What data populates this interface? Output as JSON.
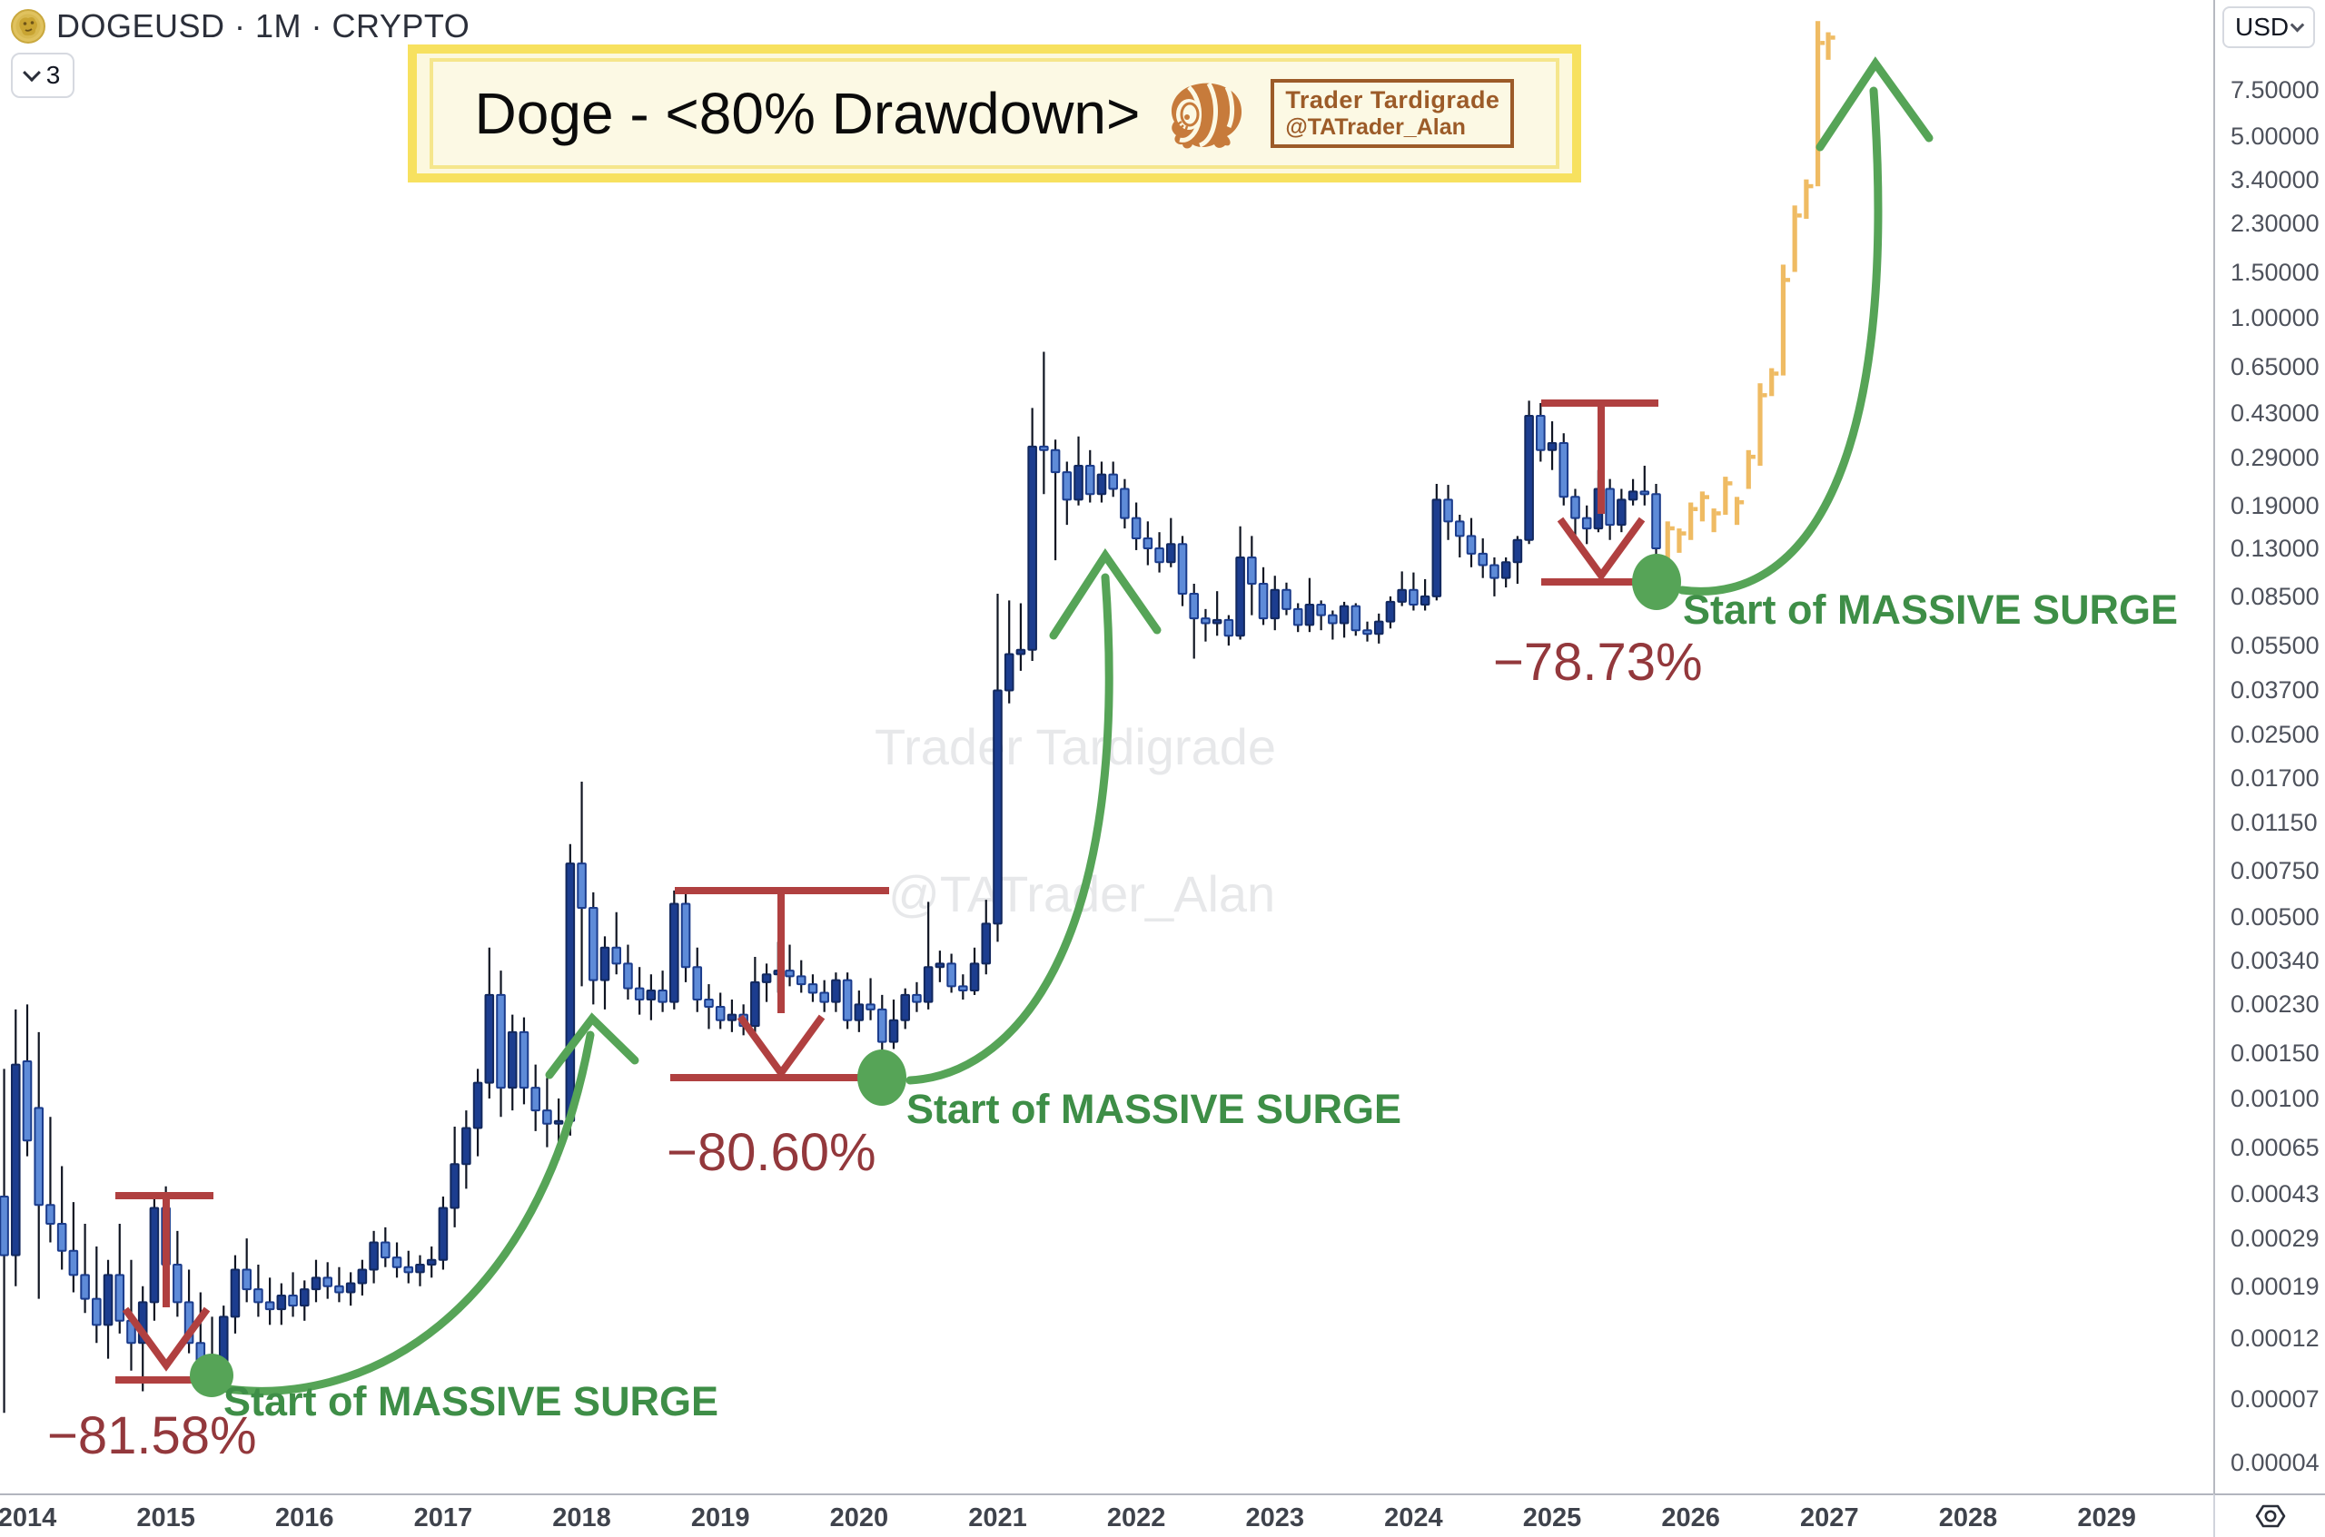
{
  "header": {
    "symbol": "DOGEUSD · 1M · CRYPTO",
    "layers_button": "3"
  },
  "banner": {
    "title": "Doge - <80% Drawdown>",
    "logo_name": "Trader Tardigrade",
    "logo_handle": "@TATrader_Alan"
  },
  "watermark": {
    "line1": "Trader Tardigrade",
    "line2": "@TATrader_Alan"
  },
  "price_axis": {
    "currency": "USD",
    "labels": [
      "7.50000",
      "5.00000",
      "3.40000",
      "2.30000",
      "1.50000",
      "1.00000",
      "0.65000",
      "0.43000",
      "0.29000",
      "0.19000",
      "0.13000",
      "0.08500",
      "0.05500",
      "0.03700",
      "0.02500",
      "0.01700",
      "0.01150",
      "0.00750",
      "0.00500",
      "0.00340",
      "0.00230",
      "0.00150",
      "0.00100",
      "0.00065",
      "0.00043",
      "0.00029",
      "0.00019",
      "0.00012",
      "0.00007",
      "0.00004"
    ]
  },
  "time_axis": {
    "years": [
      "2014",
      "2015",
      "2016",
      "2017",
      "2018",
      "2019",
      "2020",
      "2021",
      "2022",
      "2023",
      "2024",
      "2025",
      "2026",
      "2027",
      "2028",
      "2029"
    ]
  },
  "chart_data": {
    "type": "candlestick",
    "symbol": "DOGEUSD",
    "timeframe": "1M",
    "quote_currency": "USD",
    "title": "Doge - <80% Drawdown>",
    "y_scale": "log",
    "y_range": [
      4e-05,
      13.8
    ],
    "x_unit": "months_since_2014-01",
    "x_tick_years": [
      2014,
      2015,
      2016,
      2017,
      2018,
      2019,
      2020,
      2021,
      2022,
      2023,
      2024,
      2025,
      2026,
      2027,
      2028,
      2029
    ],
    "grid": false,
    "colors": {
      "up": "#1C3D8F",
      "down": "#5E8BD8",
      "wick": "#101522",
      "projection": "#EFBB63",
      "annotation_red": "#B04040",
      "annotation_red_text": "#93383C",
      "surge_green": "#56A457",
      "surge_green_text": "#3E8E47"
    },
    "candles": [
      [
        -2,
        0.00042,
        0.0013,
        6.2e-05,
        0.00025
      ],
      [
        -1,
        0.00025,
        0.0022,
        0.00019,
        0.00135
      ],
      [
        0,
        0.00139,
        0.0023,
        0.0006,
        0.00069
      ],
      [
        1,
        0.00092,
        0.0018,
        0.00017,
        0.00039
      ],
      [
        2,
        0.00039,
        0.00085,
        0.00028,
        0.00033
      ],
      [
        3,
        0.00033,
        0.00055,
        0.00022,
        0.00026
      ],
      [
        4,
        0.00026,
        0.0004,
        0.00018,
        0.00021
      ],
      [
        5,
        0.00021,
        0.00033,
        0.00015,
        0.00017
      ],
      [
        6,
        0.00017,
        0.00027,
        0.000115,
        0.000135
      ],
      [
        7,
        0.000135,
        0.00024,
        0.0001,
        0.00021
      ],
      [
        8,
        0.00021,
        0.00033,
        0.000125,
        0.00014
      ],
      [
        9,
        0.00014,
        0.00024,
        9e-05,
        0.000115
      ],
      [
        10,
        0.000115,
        0.00019,
        7.5e-05,
        0.000165
      ],
      [
        11,
        0.000165,
        0.00042,
        0.00014,
        0.00038
      ],
      [
        12,
        0.00038,
        0.00046,
        0.0002,
        0.00023
      ],
      [
        13,
        0.00023,
        0.00031,
        0.000145,
        0.000165
      ],
      [
        14,
        0.000165,
        0.00022,
        0.000105,
        0.000115
      ],
      [
        15,
        0.000115,
        0.00018,
        8.5e-05,
        9.5e-05
      ],
      [
        16,
        9.5e-05,
        0.000145,
        8.2e-05,
        8.8e-05
      ],
      [
        17,
        8.8e-05,
        0.00016,
        8.4e-05,
        0.000145
      ],
      [
        18,
        0.000145,
        0.00025,
        0.000125,
        0.00022
      ],
      [
        19,
        0.00022,
        0.00029,
        0.000165,
        0.000185
      ],
      [
        20,
        0.000185,
        0.00023,
        0.000145,
        0.000165
      ],
      [
        21,
        0.000165,
        0.000205,
        0.000135,
        0.000155
      ],
      [
        22,
        0.000155,
        0.000195,
        0.000135,
        0.000175
      ],
      [
        23,
        0.000175,
        0.000215,
        0.000145,
        0.00016
      ],
      [
        24,
        0.00016,
        0.0002,
        0.00014,
        0.000185
      ],
      [
        25,
        0.000185,
        0.00024,
        0.000165,
        0.000205
      ],
      [
        26,
        0.000205,
        0.000235,
        0.00017,
        0.00019
      ],
      [
        27,
        0.00019,
        0.000225,
        0.000165,
        0.00018
      ],
      [
        28,
        0.00018,
        0.000215,
        0.00016,
        0.000195
      ],
      [
        29,
        0.000195,
        0.00024,
        0.000175,
        0.00022
      ],
      [
        30,
        0.00022,
        0.00031,
        0.000195,
        0.00028
      ],
      [
        31,
        0.00028,
        0.00032,
        0.000225,
        0.000245
      ],
      [
        32,
        0.000245,
        0.00028,
        0.000205,
        0.000225
      ],
      [
        33,
        0.000225,
        0.00026,
        0.000195,
        0.000215
      ],
      [
        34,
        0.000215,
        0.00025,
        0.00019,
        0.00023
      ],
      [
        35,
        0.00023,
        0.00027,
        0.000205,
        0.00024
      ],
      [
        36,
        0.00024,
        0.00042,
        0.00022,
        0.00038
      ],
      [
        37,
        0.00038,
        0.00078,
        0.00032,
        0.00056
      ],
      [
        38,
        0.00056,
        0.0009,
        0.00045,
        0.00077
      ],
      [
        39,
        0.00077,
        0.0013,
        0.0006,
        0.00115
      ],
      [
        40,
        0.00115,
        0.0038,
        0.001,
        0.0025
      ],
      [
        41,
        0.0025,
        0.0031,
        0.00085,
        0.0011
      ],
      [
        42,
        0.0011,
        0.0021,
        0.0009,
        0.0018
      ],
      [
        43,
        0.0018,
        0.00205,
        0.00095,
        0.0011
      ],
      [
        44,
        0.0011,
        0.00135,
        0.00075,
        0.0009
      ],
      [
        45,
        0.0009,
        0.0012,
        0.00065,
        0.0008
      ],
      [
        46,
        0.0008,
        0.001,
        0.00058,
        0.00082
      ],
      [
        47,
        0.00082,
        0.0095,
        0.00072,
        0.008
      ],
      [
        48,
        0.008,
        0.0165,
        0.0027,
        0.0054
      ],
      [
        49,
        0.0054,
        0.0062,
        0.0023,
        0.00285
      ],
      [
        50,
        0.00285,
        0.0042,
        0.0022,
        0.0038
      ],
      [
        51,
        0.0038,
        0.0052,
        0.003,
        0.0033
      ],
      [
        52,
        0.0033,
        0.0039,
        0.0024,
        0.00265
      ],
      [
        53,
        0.00265,
        0.0032,
        0.0021,
        0.0024
      ],
      [
        54,
        0.0024,
        0.003,
        0.002,
        0.0026
      ],
      [
        55,
        0.0026,
        0.0031,
        0.00215,
        0.00235
      ],
      [
        56,
        0.00235,
        0.0063,
        0.0022,
        0.0056
      ],
      [
        57,
        0.0056,
        0.0064,
        0.0028,
        0.0032
      ],
      [
        58,
        0.0032,
        0.0038,
        0.00215,
        0.0024
      ],
      [
        59,
        0.0024,
        0.00275,
        0.00185,
        0.00225
      ],
      [
        60,
        0.00225,
        0.00255,
        0.00185,
        0.002
      ],
      [
        61,
        0.002,
        0.0024,
        0.0018,
        0.0021
      ],
      [
        62,
        0.0021,
        0.0023,
        0.00175,
        0.0019
      ],
      [
        63,
        0.0019,
        0.0035,
        0.0018,
        0.0028
      ],
      [
        64,
        0.0028,
        0.0033,
        0.00235,
        0.003
      ],
      [
        65,
        0.003,
        0.004,
        0.00255,
        0.0031
      ],
      [
        66,
        0.0031,
        0.0039,
        0.0027,
        0.00295
      ],
      [
        67,
        0.00295,
        0.0034,
        0.00255,
        0.00275
      ],
      [
        68,
        0.00275,
        0.003,
        0.00235,
        0.00255
      ],
      [
        69,
        0.00255,
        0.00285,
        0.00215,
        0.00235
      ],
      [
        70,
        0.00235,
        0.00305,
        0.00215,
        0.00285
      ],
      [
        71,
        0.00285,
        0.00305,
        0.00185,
        0.002
      ],
      [
        72,
        0.002,
        0.0026,
        0.0018,
        0.0023
      ],
      [
        73,
        0.0023,
        0.0029,
        0.002,
        0.0022
      ],
      [
        74,
        0.0022,
        0.0025,
        0.0012,
        0.00165
      ],
      [
        75,
        0.00165,
        0.0024,
        0.00155,
        0.002
      ],
      [
        76,
        0.002,
        0.00265,
        0.00185,
        0.0025
      ],
      [
        77,
        0.0025,
        0.0028,
        0.00215,
        0.00235
      ],
      [
        78,
        0.00235,
        0.0057,
        0.0022,
        0.0032
      ],
      [
        79,
        0.0032,
        0.0037,
        0.0028,
        0.0033
      ],
      [
        80,
        0.0033,
        0.0036,
        0.00255,
        0.0027
      ],
      [
        81,
        0.0027,
        0.003,
        0.0024,
        0.0026
      ],
      [
        82,
        0.0026,
        0.0038,
        0.0025,
        0.0033
      ],
      [
        83,
        0.0033,
        0.0058,
        0.003,
        0.0047
      ],
      [
        84,
        0.0047,
        0.087,
        0.004,
        0.037
      ],
      [
        85,
        0.037,
        0.082,
        0.033,
        0.051
      ],
      [
        86,
        0.051,
        0.08,
        0.044,
        0.053
      ],
      [
        87,
        0.053,
        0.45,
        0.048,
        0.32
      ],
      [
        88,
        0.32,
        0.74,
        0.21,
        0.31
      ],
      [
        89,
        0.31,
        0.34,
        0.117,
        0.255
      ],
      [
        90,
        0.255,
        0.28,
        0.16,
        0.2
      ],
      [
        91,
        0.2,
        0.35,
        0.19,
        0.27
      ],
      [
        92,
        0.27,
        0.31,
        0.195,
        0.21
      ],
      [
        93,
        0.21,
        0.28,
        0.195,
        0.25
      ],
      [
        94,
        0.25,
        0.28,
        0.205,
        0.22
      ],
      [
        95,
        0.22,
        0.24,
        0.155,
        0.17
      ],
      [
        96,
        0.17,
        0.195,
        0.128,
        0.142
      ],
      [
        97,
        0.142,
        0.165,
        0.112,
        0.13
      ],
      [
        98,
        0.13,
        0.15,
        0.105,
        0.115
      ],
      [
        99,
        0.115,
        0.17,
        0.11,
        0.135
      ],
      [
        100,
        0.135,
        0.145,
        0.078,
        0.087
      ],
      [
        101,
        0.087,
        0.095,
        0.049,
        0.07
      ],
      [
        102,
        0.07,
        0.076,
        0.057,
        0.067
      ],
      [
        103,
        0.067,
        0.089,
        0.06,
        0.069
      ],
      [
        104,
        0.069,
        0.072,
        0.055,
        0.06
      ],
      [
        105,
        0.06,
        0.158,
        0.058,
        0.12
      ],
      [
        106,
        0.12,
        0.145,
        0.072,
        0.095
      ],
      [
        107,
        0.095,
        0.11,
        0.066,
        0.07
      ],
      [
        108,
        0.07,
        0.102,
        0.063,
        0.09
      ],
      [
        109,
        0.09,
        0.096,
        0.072,
        0.076
      ],
      [
        110,
        0.076,
        0.08,
        0.062,
        0.066
      ],
      [
        111,
        0.066,
        0.1,
        0.062,
        0.079
      ],
      [
        112,
        0.079,
        0.082,
        0.063,
        0.072
      ],
      [
        113,
        0.072,
        0.075,
        0.058,
        0.067
      ],
      [
        114,
        0.067,
        0.081,
        0.059,
        0.078
      ],
      [
        115,
        0.078,
        0.08,
        0.06,
        0.063
      ],
      [
        116,
        0.063,
        0.068,
        0.057,
        0.061
      ],
      [
        117,
        0.061,
        0.073,
        0.056,
        0.068
      ],
      [
        118,
        0.068,
        0.085,
        0.064,
        0.081
      ],
      [
        119,
        0.081,
        0.106,
        0.078,
        0.09
      ],
      [
        120,
        0.09,
        0.105,
        0.075,
        0.079
      ],
      [
        121,
        0.079,
        0.099,
        0.075,
        0.085
      ],
      [
        122,
        0.085,
        0.23,
        0.082,
        0.2
      ],
      [
        123,
        0.2,
        0.228,
        0.14,
        0.165
      ],
      [
        124,
        0.165,
        0.175,
        0.12,
        0.145
      ],
      [
        125,
        0.145,
        0.17,
        0.11,
        0.124
      ],
      [
        126,
        0.124,
        0.142,
        0.1,
        0.112
      ],
      [
        127,
        0.112,
        0.12,
        0.085,
        0.1
      ],
      [
        128,
        0.1,
        0.12,
        0.092,
        0.115
      ],
      [
        129,
        0.115,
        0.145,
        0.095,
        0.14
      ],
      [
        130,
        0.14,
        0.48,
        0.135,
        0.42
      ],
      [
        131,
        0.42,
        0.47,
        0.28,
        0.31
      ],
      [
        132,
        0.31,
        0.4,
        0.26,
        0.33
      ],
      [
        133,
        0.33,
        0.36,
        0.19,
        0.205
      ],
      [
        134,
        0.205,
        0.22,
        0.14,
        0.17
      ],
      [
        135,
        0.17,
        0.19,
        0.135,
        0.155
      ],
      [
        136,
        0.155,
        0.26,
        0.15,
        0.22
      ],
      [
        137,
        0.22,
        0.24,
        0.14,
        0.16
      ],
      [
        138,
        0.16,
        0.22,
        0.15,
        0.2
      ],
      [
        139,
        0.2,
        0.24,
        0.19,
        0.215
      ],
      [
        140,
        0.215,
        0.27,
        0.19,
        0.21
      ],
      [
        141,
        0.21,
        0.23,
        0.096,
        0.13
      ]
    ],
    "projection_bars": [
      [
        142,
        0.115,
        0.165
      ],
      [
        143,
        0.125,
        0.155
      ],
      [
        144,
        0.14,
        0.195
      ],
      [
        145,
        0.165,
        0.215
      ],
      [
        146,
        0.15,
        0.185
      ],
      [
        147,
        0.175,
        0.245
      ],
      [
        148,
        0.16,
        0.205
      ],
      [
        149,
        0.22,
        0.31
      ],
      [
        150,
        0.27,
        0.56
      ],
      [
        151,
        0.5,
        0.64
      ],
      [
        152,
        0.6,
        1.6
      ],
      [
        153,
        1.5,
        2.7
      ],
      [
        154,
        2.4,
        3.4
      ],
      [
        155,
        3.2,
        13.8
      ],
      [
        155.9,
        9.8,
        12.5
      ]
    ],
    "annotations": [
      {
        "type": "drawdown",
        "value": "−81.58%",
        "surge_label": "Start of MASSIVE SURGE",
        "from_price": 0.00042,
        "to_price": 8.2e-05,
        "low_month": 16
      },
      {
        "type": "drawdown",
        "value": "−80.60%",
        "surge_label": "Start of MASSIVE SURGE",
        "from_price": 0.0063,
        "to_price": 0.0012,
        "low_month": 74
      },
      {
        "type": "drawdown",
        "value": "−78.73%",
        "surge_label": "Start of MASSIVE SURGE",
        "from_price": 0.47,
        "to_price": 0.096,
        "low_month": 141
      }
    ]
  }
}
